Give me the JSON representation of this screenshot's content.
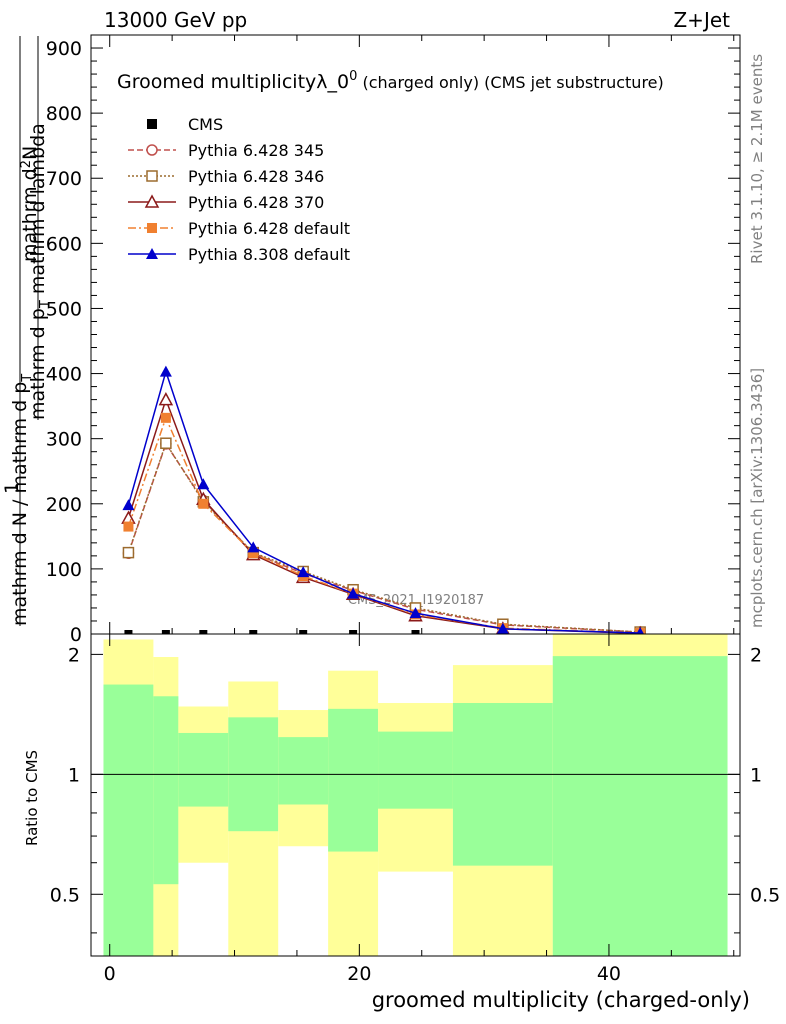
{
  "header": {
    "left": "13000 GeV pp",
    "right": "Z+Jet"
  },
  "side_text": {
    "rivet": "Rivet 3.1.10, ≥ 2.1M events",
    "mcplots": "mcplots.cern.ch [arXiv:1306.3436]"
  },
  "chart_data": {
    "type": "line",
    "title": "Groomed multiplicityλ_0",
    "title_sup": "0",
    "title_suffix": " (charged only) (CMS jet substructure)",
    "ylabel_top_numerator": "mathrm d",
    "ylabel_top_numerator_sup": "2",
    "ylabel_top_numerator_end": "N",
    "ylabel_top_denominator": "mathrm d p",
    "ylabel_top_denominator_sub": "T",
    "ylabel_top_denominator_end": " mathrm d lambda",
    "ylabel_bottom_numerator": "1",
    "ylabel_bottom_denominator": "mathrm d N / mathrm d p",
    "ylabel_bottom_denominator_sub": "T",
    "xlabel": "groomed multiplicity (charged-only)",
    "ratio_ylabel": "Ratio to CMS",
    "watermark": "CMS_2021_I1920187",
    "xlim": [
      -1.5,
      50.5
    ],
    "ylim": [
      0,
      920
    ],
    "ratio_ylim": [
      0.35,
      2.25
    ],
    "x_ticks": [
      "0",
      "20",
      "40"
    ],
    "y_ticks": [
      "0",
      "100",
      "200",
      "300",
      "400",
      "500",
      "600",
      "700",
      "800",
      "900"
    ],
    "ratio_ticks": [
      "0.5",
      "1",
      "2"
    ],
    "x": [
      1.5,
      4.5,
      7.5,
      11.5,
      15.5,
      19.5,
      24.5,
      31.5,
      42.5
    ],
    "series": [
      {
        "name": "CMS",
        "color": "#000000",
        "marker": "square",
        "dash": "none",
        "values": [
          0,
          0,
          0,
          0,
          0,
          0,
          0,
          0,
          0
        ]
      },
      {
        "name": "Pythia 6.428 345",
        "color": "#c0504d",
        "marker": "circle-open",
        "dash": "6,3",
        "values": [
          124,
          292,
          205,
          124,
          93,
          67,
          38,
          14,
          3
        ]
      },
      {
        "name": "Pythia 6.428 346",
        "color": "#9c6b2e",
        "marker": "square-open",
        "dash": "2,2",
        "values": [
          125,
          293,
          203,
          125,
          96,
          68,
          40,
          15,
          3
        ]
      },
      {
        "name": "Pythia 6.428 370",
        "color": "#8b1a1a",
        "marker": "triangle-open",
        "dash": "none",
        "values": [
          178,
          360,
          207,
          122,
          87,
          61,
          28,
          8,
          1
        ]
      },
      {
        "name": "Pythia 6.428 default",
        "color": "#f08030",
        "marker": "square",
        "dash": "8,3,2,3",
        "values": [
          165,
          332,
          200,
          124,
          89,
          62,
          30,
          9,
          1.5
        ]
      },
      {
        "name": "Pythia 8.308 default",
        "color": "#0000cc",
        "marker": "triangle",
        "dash": "none",
        "values": [
          198,
          403,
          230,
          133,
          95,
          62,
          32,
          8,
          1.5
        ]
      }
    ],
    "ratio_bands": [
      {
        "x0": -0.5,
        "x1": 3.5,
        "yellow_lo": 0.35,
        "yellow_hi": 2.18,
        "green_lo": 0.35,
        "green_hi": 1.68
      },
      {
        "x0": 3.5,
        "x1": 5.5,
        "yellow_lo": 0.35,
        "yellow_hi": 1.97,
        "green_lo": 0.53,
        "green_hi": 1.57
      },
      {
        "x0": 5.5,
        "x1": 9.5,
        "yellow_lo": 0.6,
        "yellow_hi": 1.48,
        "green_lo": 0.83,
        "green_hi": 1.27
      },
      {
        "x0": 9.5,
        "x1": 13.5,
        "yellow_lo": 0.35,
        "yellow_hi": 1.71,
        "green_lo": 0.72,
        "green_hi": 1.39
      },
      {
        "x0": 13.5,
        "x1": 17.5,
        "yellow_lo": 0.66,
        "yellow_hi": 1.45,
        "green_lo": 0.84,
        "green_hi": 1.24
      },
      {
        "x0": 17.5,
        "x1": 21.5,
        "yellow_lo": 0.35,
        "yellow_hi": 1.82,
        "green_lo": 0.64,
        "green_hi": 1.46
      },
      {
        "x0": 21.5,
        "x1": 27.5,
        "yellow_lo": 0.57,
        "yellow_hi": 1.51,
        "green_lo": 0.82,
        "green_hi": 1.28
      },
      {
        "x0": 27.5,
        "x1": 35.5,
        "yellow_lo": 0.35,
        "yellow_hi": 1.88,
        "green_lo": 0.59,
        "green_hi": 1.51
      },
      {
        "x0": 35.5,
        "x1": 49.5,
        "yellow_lo": 0.35,
        "yellow_hi": 2.25,
        "green_lo": 0.35,
        "green_hi": 1.98
      }
    ],
    "colors": {
      "band_green": "#99ff99",
      "band_yellow": "#ffff99"
    }
  }
}
